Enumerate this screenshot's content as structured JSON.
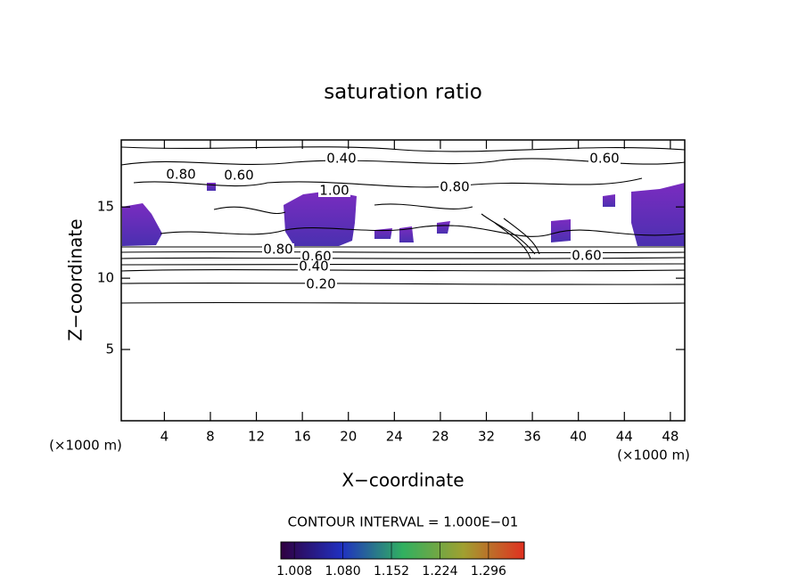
{
  "chart_data": {
    "type": "contour",
    "title": "saturation ratio",
    "xlabel": "X−coordinate",
    "ylabel": "Z−coordinate",
    "xlabel_unit": "(×1000 m)",
    "ylabel_unit": "(×1000 m)",
    "xlim": [
      0.25,
      49.25
    ],
    "ylim": [
      0,
      19.7
    ],
    "xticks": [
      4,
      8,
      12,
      16,
      20,
      24,
      28,
      32,
      36,
      40,
      44,
      48
    ],
    "yticks": [
      5,
      10,
      15
    ],
    "contour_labels": [
      {
        "value": 0.4,
        "label": "0.40"
      },
      {
        "value": 0.6,
        "label": "0.60"
      },
      {
        "value": 0.8,
        "label": "0.80"
      },
      {
        "value": 0.6,
        "label": "0.60"
      },
      {
        "value": 1.0,
        "label": "1.00"
      },
      {
        "value": 0.8,
        "label": "0.80"
      },
      {
        "value": 0.8,
        "label": "0.80"
      },
      {
        "value": 0.6,
        "label": "0.60"
      },
      {
        "value": 0.4,
        "label": "0.40"
      },
      {
        "value": 0.2,
        "label": "0.20"
      },
      {
        "value": 0.6,
        "label": "0.60"
      }
    ],
    "contour_interval_text": "CONTOUR INTERVAL = 1.000E−01",
    "colorbar": {
      "clim": [
        0.988,
        1.349
      ],
      "ticks": [
        1.008,
        {
          "value": 1.08,
          "label": "1.080"
        },
        1.152,
        1.224,
        1.296
      ]
    }
  }
}
